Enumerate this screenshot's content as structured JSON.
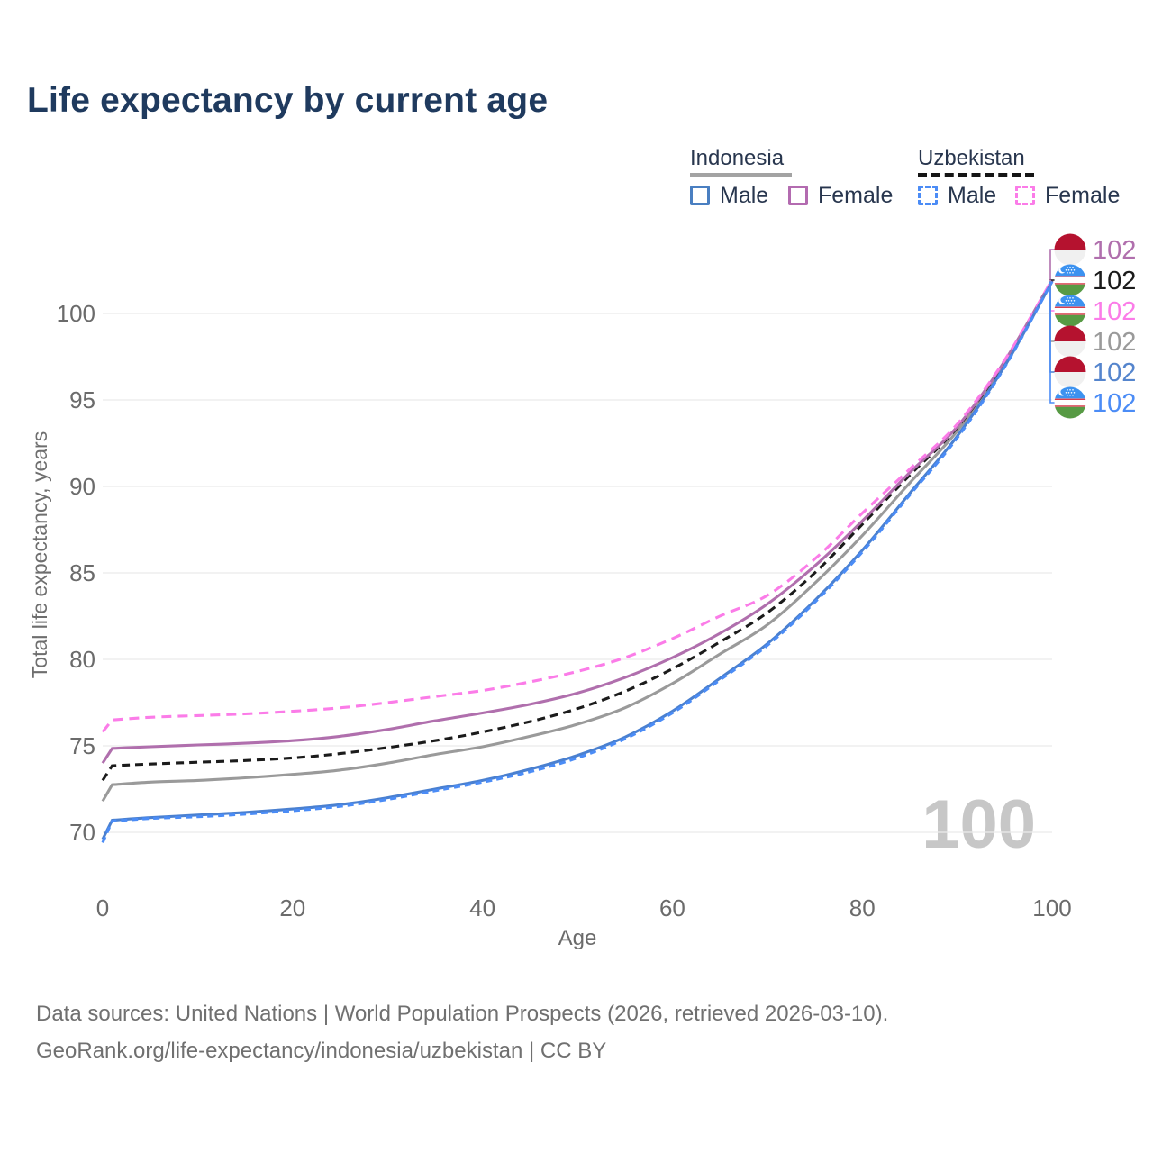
{
  "page": {
    "title": "Life expectancy by current age"
  },
  "legend": {
    "groups": [
      {
        "country": "Indonesia",
        "line_style": "solid",
        "underline_color": "#a3a3a3",
        "items": [
          {
            "label": "Male",
            "color": "#4a7fc1",
            "dashed": false
          },
          {
            "label": "Female",
            "color": "#b36bb0",
            "dashed": false
          }
        ]
      },
      {
        "country": "Uzbekistan",
        "line_style": "dashed",
        "underline_color": "#151515",
        "items": [
          {
            "label": "Male",
            "color": "#4b8cf6",
            "dashed": true
          },
          {
            "label": "Female",
            "color": "#fb7ce8",
            "dashed": true
          }
        ]
      }
    ]
  },
  "chart_data": {
    "type": "line",
    "title": "Life expectancy by current age",
    "xlabel": "Age",
    "ylabel": "Total life expectancy, years",
    "xlim": [
      0,
      100
    ],
    "ylim": [
      68,
      103
    ],
    "x_ticks": [
      0,
      20,
      40,
      60,
      80,
      100
    ],
    "y_ticks": [
      70,
      75,
      80,
      85,
      90,
      95,
      100
    ],
    "grid": "horizontal",
    "legend_position": "top-right",
    "x": [
      0,
      1,
      5,
      10,
      15,
      20,
      25,
      30,
      35,
      40,
      45,
      50,
      55,
      60,
      65,
      70,
      75,
      80,
      85,
      90,
      95,
      100
    ],
    "series": [
      {
        "id": "idn-female",
        "country": "Indonesia",
        "sex": "Female",
        "color": "#b06fad",
        "dash": null,
        "flag": "indonesia",
        "end_label": "102",
        "end_label_color": "#b06fad",
        "row": 0,
        "values": [
          74.0,
          74.85,
          74.95,
          75.05,
          75.15,
          75.3,
          75.55,
          75.95,
          76.45,
          76.9,
          77.4,
          78.05,
          78.95,
          80.1,
          81.5,
          83.2,
          85.4,
          88.0,
          90.8,
          93.45,
          97.25,
          101.95
        ]
      },
      {
        "id": "uzb-total",
        "country": "Uzbekistan",
        "sex": "Both sexes",
        "color": "#1b1b1b",
        "dash": "9 6",
        "flag": "uzbekistan",
        "end_label": "102",
        "end_label_color": "#1b1b1b",
        "row": 1,
        "values": [
          73.0,
          73.85,
          73.95,
          74.05,
          74.15,
          74.3,
          74.55,
          74.9,
          75.3,
          75.8,
          76.4,
          77.15,
          78.15,
          79.45,
          81.0,
          82.7,
          85.0,
          87.8,
          90.65,
          93.4,
          97.2,
          101.9
        ]
      },
      {
        "id": "uzb-female",
        "country": "Uzbekistan",
        "sex": "Female",
        "color": "#fb7ce8",
        "dash": "11 7",
        "flag": "uzbekistan",
        "end_label": "102",
        "end_label_color": "#fb7ce8",
        "row": 2,
        "values": [
          75.8,
          76.5,
          76.65,
          76.75,
          76.85,
          77.0,
          77.2,
          77.5,
          77.85,
          78.2,
          78.7,
          79.3,
          80.1,
          81.2,
          82.5,
          83.7,
          85.8,
          88.45,
          91.0,
          93.6,
          97.3,
          101.95
        ]
      },
      {
        "id": "idn-total",
        "country": "Indonesia",
        "sex": "Both sexes",
        "color": "#9a9a9a",
        "dash": null,
        "flag": "indonesia",
        "end_label": "102",
        "end_label_color": "#9a9a9a",
        "row": 3,
        "values": [
          71.8,
          72.75,
          72.9,
          73.0,
          73.15,
          73.35,
          73.6,
          74.0,
          74.5,
          74.95,
          75.55,
          76.25,
          77.2,
          78.6,
          80.3,
          82.0,
          84.4,
          87.15,
          90.2,
          93.2,
          97.1,
          101.9
        ]
      },
      {
        "id": "idn-male",
        "country": "Indonesia",
        "sex": "Male",
        "color": "#4a80d0",
        "dash": null,
        "flag": "indonesia",
        "end_label": "102",
        "end_label_color": "#5585cd",
        "row": 4,
        "values": [
          69.6,
          70.7,
          70.85,
          71.0,
          71.15,
          71.35,
          71.6,
          72.0,
          72.5,
          73.0,
          73.65,
          74.45,
          75.5,
          77.0,
          78.9,
          80.9,
          83.4,
          86.3,
          89.6,
          92.9,
          96.95,
          101.85
        ]
      },
      {
        "id": "uzb-male",
        "country": "Uzbekistan",
        "sex": "Male",
        "color": "#4b8cf6",
        "dash": "7 5",
        "flag": "uzbekistan",
        "end_label": "102",
        "end_label_color": "#4b8cf6",
        "row": 5,
        "values": [
          69.4,
          70.65,
          70.8,
          70.9,
          71.05,
          71.25,
          71.5,
          71.9,
          72.4,
          72.9,
          73.5,
          74.3,
          75.4,
          76.9,
          78.8,
          80.8,
          83.3,
          86.2,
          89.5,
          92.8,
          96.9,
          101.85
        ]
      }
    ]
  },
  "watermark": "100",
  "footer": {
    "line1": "Data sources: United Nations | World Population Prospects (2026, retrieved 2026-03-10).",
    "line2": "GeoRank.org/life-expectancy/indonesia/uzbekistan | CC BY"
  }
}
